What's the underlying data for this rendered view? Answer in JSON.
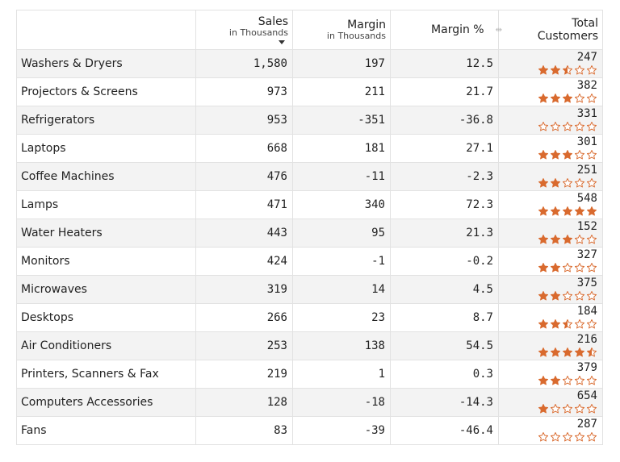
{
  "colors": {
    "star": "#d96a2e",
    "star_empty_stroke": "#d96a2e",
    "stripe": "#f3f3f3"
  },
  "icons": {
    "sort": "sort-descending-icon",
    "resize": "column-resize-icon",
    "star": "star-icon"
  },
  "headers": {
    "sales": {
      "main": "Sales",
      "sub": "in Thousands"
    },
    "margin": {
      "main": "Margin",
      "sub": "in Thousands"
    },
    "margin_pct": "Margin %",
    "total": "Total",
    "customers": "Customers"
  },
  "rows": [
    {
      "category": "Washers & Dryers",
      "sales": "1,580",
      "margin": "197",
      "margin_pct": "12.5",
      "customers": "247",
      "rating": 2.5
    },
    {
      "category": "Projectors & Screens",
      "sales": "973",
      "margin": "211",
      "margin_pct": "21.7",
      "customers": "382",
      "rating": 3
    },
    {
      "category": "Refrigerators",
      "sales": "953",
      "margin": "-351",
      "margin_pct": "-36.8",
      "customers": "331",
      "rating": 0
    },
    {
      "category": "Laptops",
      "sales": "668",
      "margin": "181",
      "margin_pct": "27.1",
      "customers": "301",
      "rating": 3
    },
    {
      "category": "Coffee Machines",
      "sales": "476",
      "margin": "-11",
      "margin_pct": "-2.3",
      "customers": "251",
      "rating": 2
    },
    {
      "category": "Lamps",
      "sales": "471",
      "margin": "340",
      "margin_pct": "72.3",
      "customers": "548",
      "rating": 5
    },
    {
      "category": "Water Heaters",
      "sales": "443",
      "margin": "95",
      "margin_pct": "21.3",
      "customers": "152",
      "rating": 3
    },
    {
      "category": "Monitors",
      "sales": "424",
      "margin": "-1",
      "margin_pct": "-0.2",
      "customers": "327",
      "rating": 2
    },
    {
      "category": "Microwaves",
      "sales": "319",
      "margin": "14",
      "margin_pct": "4.5",
      "customers": "375",
      "rating": 2
    },
    {
      "category": "Desktops",
      "sales": "266",
      "margin": "23",
      "margin_pct": "8.7",
      "customers": "184",
      "rating": 2.5
    },
    {
      "category": "Air Conditioners",
      "sales": "253",
      "margin": "138",
      "margin_pct": "54.5",
      "customers": "216",
      "rating": 4.5
    },
    {
      "category": "Printers, Scanners & Fax",
      "sales": "219",
      "margin": "1",
      "margin_pct": "0.3",
      "customers": "379",
      "rating": 2
    },
    {
      "category": "Computers Accessories",
      "sales": "128",
      "margin": "-18",
      "margin_pct": "-14.3",
      "customers": "654",
      "rating": 1
    },
    {
      "category": "Fans",
      "sales": "83",
      "margin": "-39",
      "margin_pct": "-46.4",
      "customers": "287",
      "rating": 0
    }
  ]
}
